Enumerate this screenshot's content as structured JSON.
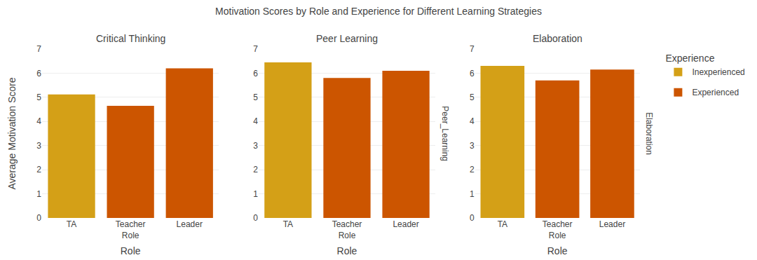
{
  "title": "Motivation Scores by Role and Experience for Different Learning Strategies",
  "legend": "right",
  "legend_title": "Experience",
  "chart_data": [
    {
      "type": "bar",
      "title": "Critical Thinking",
      "xlabel": "Role",
      "ylabel": "Average Motivation Score",
      "categories": [
        "TA",
        "Teacher\nRole",
        "Leader"
      ],
      "series": [
        {
          "name": "Inexperienced",
          "color": "#D4A017",
          "values": [
            5.12,
            null,
            null
          ]
        },
        {
          "name": "Experienced",
          "color": "#CC5500",
          "values": [
            null,
            4.65,
            6.2
          ]
        }
      ],
      "ylim": [
        0,
        7
      ],
      "yticks": [
        0,
        1,
        2,
        3,
        4,
        5,
        6,
        7
      ],
      "grid": true
    },
    {
      "type": "bar",
      "title": "Peer Learning",
      "xlabel": "Role",
      "ylabel_right": "Peer_Learning",
      "categories": [
        "TA",
        "Teacher\nRole",
        "Leader"
      ],
      "series": [
        {
          "name": "Inexperienced",
          "color": "#D4A017",
          "values": [
            6.45,
            null,
            null
          ]
        },
        {
          "name": "Experienced",
          "color": "#CC5500",
          "values": [
            null,
            5.8,
            6.1
          ]
        }
      ],
      "ylim": [
        0,
        7
      ],
      "yticks": [
        0,
        1,
        2,
        3,
        4,
        5,
        6,
        7
      ],
      "grid": true
    },
    {
      "type": "bar",
      "title": "Elaboration",
      "xlabel": "Role",
      "ylabel_right": "Elaboration",
      "categories": [
        "TA",
        "Teacher\nRole",
        "Leader"
      ],
      "series": [
        {
          "name": "Inexperienced",
          "color": "#D4A017",
          "values": [
            6.3,
            null,
            null
          ]
        },
        {
          "name": "Experienced",
          "color": "#CC5500",
          "values": [
            null,
            5.7,
            6.15
          ]
        }
      ],
      "ylim": [
        0,
        7
      ],
      "yticks": [
        0,
        1,
        2,
        3,
        4,
        5,
        6,
        7
      ],
      "grid": true
    }
  ]
}
